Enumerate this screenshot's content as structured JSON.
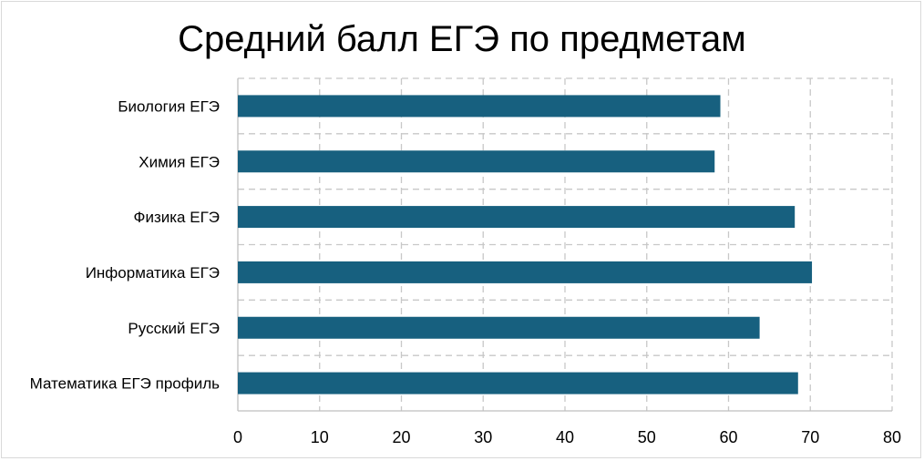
{
  "chart_data": {
    "type": "bar",
    "orientation": "horizontal",
    "title": "Средний балл ЕГЭ по предметам",
    "xlabel": "",
    "ylabel": "",
    "categories": [
      "Математика ЕГЭ профиль",
      "Русский ЕГЭ",
      "Информатика ЕГЭ",
      "Физика ЕГЭ",
      "Химия ЕГЭ",
      "Биология ЕГЭ"
    ],
    "values": [
      68.5,
      63.8,
      70.2,
      68.1,
      58.3,
      59
    ],
    "xlim": [
      0,
      80
    ],
    "xticks": [
      "0",
      "10",
      "20",
      "30",
      "40",
      "50",
      "60",
      "70",
      "80"
    ],
    "grid": "dashed",
    "legend": "none",
    "bar_color": "#17607f"
  }
}
